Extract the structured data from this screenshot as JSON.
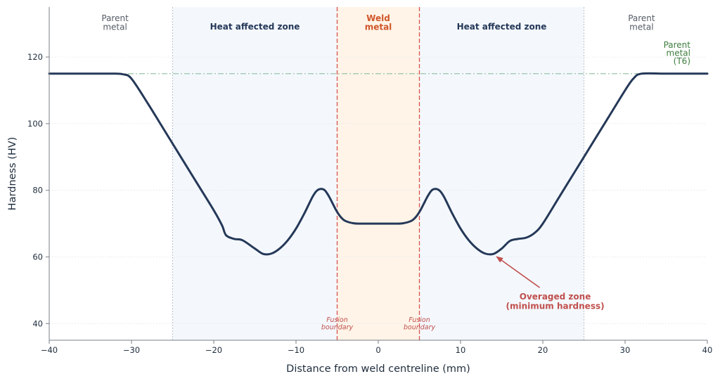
{
  "chart_data": {
    "type": "line",
    "xlabel": "Distance from weld centreline (mm)",
    "ylabel": "Hardness (HV)",
    "xlim": [
      -40,
      40
    ],
    "ylim": [
      35,
      135
    ],
    "x_ticks": [
      -40,
      -30,
      -20,
      -10,
      0,
      10,
      20,
      30,
      40
    ],
    "x_tick_labels": [
      "−40",
      "−30",
      "−20",
      "−10",
      "0",
      "10",
      "20",
      "30",
      "40"
    ],
    "y_ticks": [
      40,
      60,
      80,
      100,
      120
    ],
    "y_tick_labels": [
      "40",
      "60",
      "80",
      "100",
      "120"
    ],
    "grid": "horizontal",
    "series": [
      {
        "color": "#253858",
        "x": [
          -40,
          -35,
          -32,
          -31,
          -30,
          -28,
          -26,
          -24,
          -22,
          -20,
          -19,
          -18.5,
          -17.5,
          -16.5,
          -15,
          -14,
          -13,
          -12,
          -11,
          -10,
          -9,
          -8,
          -7.5,
          -7,
          -6.5,
          -6,
          -5.5,
          -5,
          -4.5,
          -4,
          -3,
          -2,
          0,
          2,
          3,
          4,
          4.5,
          5,
          5.5,
          6,
          6.5,
          7,
          7.5,
          8,
          9,
          10,
          11,
          12,
          13,
          14,
          15,
          16,
          17,
          18,
          19,
          20,
          22,
          24,
          26,
          28,
          30,
          31,
          32,
          35,
          40
        ],
        "y": [
          115,
          115,
          115,
          114.8,
          113.5,
          106,
          98,
          90,
          82,
          74,
          69.5,
          66.5,
          65.4,
          65,
          62.5,
          60.9,
          61,
          62.5,
          65,
          68.5,
          73,
          78,
          79.8,
          80.4,
          80,
          78.2,
          75.8,
          73.5,
          71.8,
          70.8,
          70.1,
          70,
          70,
          70,
          70.1,
          70.8,
          71.8,
          73.5,
          75.8,
          78.2,
          80,
          80.4,
          79.8,
          78,
          73,
          68.5,
          65,
          62.5,
          61,
          60.9,
          62.5,
          64.8,
          65.4,
          65.8,
          67.2,
          70,
          78,
          86,
          94,
          102,
          110,
          113.5,
          115,
          115,
          115
        ]
      }
    ],
    "reference_line": {
      "y": 115,
      "color": "#8fbf9f",
      "label": "Parent\nmetal\n(T6)",
      "label_color": "#3d7d3d"
    },
    "regions": [
      {
        "name": "parent-left",
        "x": [
          -40,
          -25
        ],
        "fill": "#ffffff",
        "label": "Parent\nmetal",
        "label_x": -32,
        "label_color": "#555c66",
        "bold": false
      },
      {
        "name": "haz-left",
        "x": [
          -25,
          -5
        ],
        "fill": "#f4f8fd",
        "label": "Heat affected zone",
        "label_x": -15,
        "label_color": "#253858",
        "bold": true
      },
      {
        "name": "weld",
        "x": [
          -5,
          5
        ],
        "fill": "#fff4e7",
        "label": "Weld\nmetal",
        "label_x": 0,
        "label_color": "#d0562a",
        "bold": true
      },
      {
        "name": "haz-right",
        "x": [
          5,
          25
        ],
        "fill": "#f4f8fd",
        "label": "Heat affected zone",
        "label_x": 15,
        "label_color": "#253858",
        "bold": true
      },
      {
        "name": "parent-right",
        "x": [
          25,
          40
        ],
        "fill": "#ffffff",
        "label": "Parent\nmetal",
        "label_x": 32,
        "label_color": "#555c66",
        "bold": false
      }
    ],
    "zone_boundaries": [
      -25,
      25
    ],
    "fusion_boundaries": [
      {
        "x": -5,
        "label": "Fusion\nboundary",
        "color": "#d9534f"
      },
      {
        "x": 5,
        "label": "Fusion\nboundary",
        "color": "#d9534f"
      }
    ],
    "annotation": {
      "text": "Overaged zone\n(minimum hardness)",
      "color": "#c0504d",
      "target": [
        14.2,
        60.5
      ],
      "text_pos": [
        21.5,
        47
      ]
    }
  }
}
